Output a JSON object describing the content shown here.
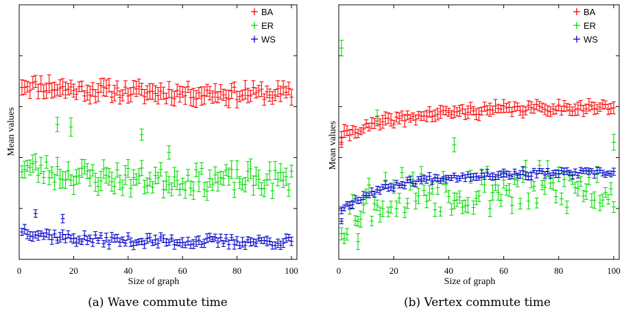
{
  "figure": {
    "captions": [
      "(a) Wave commute time",
      "(b) Vertex commute time"
    ]
  },
  "colors": {
    "BA": "#ff0000",
    "ER": "#00dd00",
    "WS": "#0000cc"
  },
  "chart_data": [
    {
      "type": "scatter",
      "title": "",
      "xlabel": "Size of graph",
      "ylabel": "Mean values",
      "xlim": [
        0,
        102
      ],
      "ylim": [
        0,
        10
      ],
      "xticks": [
        0,
        20,
        40,
        60,
        80,
        100
      ],
      "xtick_labels": [
        "0",
        "20",
        "40",
        "60",
        "80",
        "100"
      ],
      "legend": {
        "position": "top-right",
        "entries": [
          "BA",
          "ER",
          "WS"
        ]
      },
      "error_bars": true,
      "series": [
        {
          "name": "BA",
          "color": "#ff0000",
          "mean": 6.5,
          "amp": 0.4,
          "noise": 0.25,
          "err": 0.28,
          "decay": 25,
          "seed": 11,
          "outliers": []
        },
        {
          "name": "ER",
          "color": "#00dd00",
          "mean": 3.1,
          "amp": 0.6,
          "noise": 0.45,
          "err": 0.3,
          "decay": 20,
          "seed": 23,
          "outliers": [
            [
              14,
              5.3
            ],
            [
              19,
              5.2
            ],
            [
              45,
              4.9
            ],
            [
              55,
              4.2
            ]
          ]
        },
        {
          "name": "WS",
          "color": "#0000cc",
          "mean": 0.7,
          "amp": 0.5,
          "noise": 0.18,
          "err": 0.15,
          "decay": 15,
          "seed": 37,
          "outliers": [
            [
              16,
              1.6
            ],
            [
              6,
              1.8
            ]
          ]
        }
      ]
    },
    {
      "type": "scatter",
      "title": "",
      "xlabel": "Size of graph",
      "ylabel": "Mean values",
      "xlim": [
        0,
        102
      ],
      "ylim": [
        0,
        10
      ],
      "xticks": [
        0,
        20,
        40,
        60,
        80,
        100
      ],
      "xtick_labels": [
        "0",
        "20",
        "40",
        "60",
        "80",
        "100"
      ],
      "legend": {
        "position": "top-right",
        "entries": [
          "BA",
          "ER",
          "WS"
        ]
      },
      "error_bars": true,
      "series": [
        {
          "name": "BA",
          "color": "#ff0000",
          "mean": 6.0,
          "amp": -1.2,
          "noise": 0.15,
          "err": 0.2,
          "decay": 25,
          "seed": 41,
          "outliers": [
            [
              1,
              4.6
            ]
          ]
        },
        {
          "name": "ER",
          "color": "#00dd00",
          "mean": 2.8,
          "amp": -1.5,
          "noise": 0.9,
          "err": 0.25,
          "decay": 10,
          "seed": 53,
          "outliers": [
            [
              1,
              8.3
            ],
            [
              14,
              5.6
            ],
            [
              42,
              4.5
            ],
            [
              100,
              4.6
            ],
            [
              7,
              0.7
            ]
          ]
        },
        {
          "name": "WS",
          "color": "#0000cc",
          "mean": 3.4,
          "amp": -1.5,
          "noise": 0.12,
          "err": 0.12,
          "decay": 18,
          "seed": 67,
          "outliers": [
            [
              1,
              1.5
            ]
          ]
        }
      ]
    }
  ]
}
